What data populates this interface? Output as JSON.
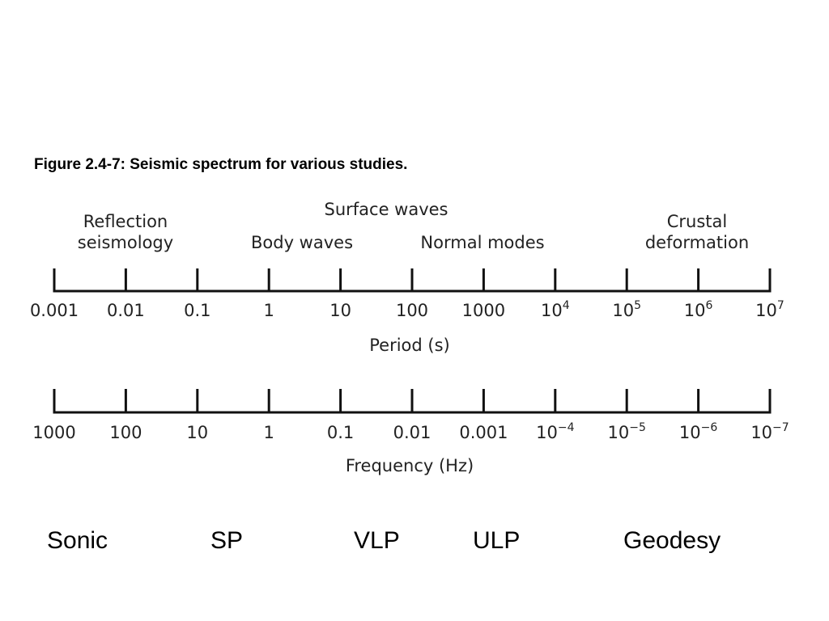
{
  "figure": {
    "title": "Figure 2.4-7: Seismic spectrum for various studies."
  },
  "categories": [
    {
      "lines": [
        "Reflection",
        "seismology"
      ]
    },
    {
      "lines": [
        "Surface waves"
      ]
    },
    {
      "lines": [
        "Body waves"
      ]
    },
    {
      "lines": [
        "Normal modes"
      ]
    },
    {
      "lines": [
        "Crustal",
        "deformation"
      ]
    }
  ],
  "period_axis": {
    "title": "Period (s)",
    "ticks": [
      {
        "base": "0.001"
      },
      {
        "base": "0.01"
      },
      {
        "base": "0.1"
      },
      {
        "base": "1"
      },
      {
        "base": "10"
      },
      {
        "base": "100"
      },
      {
        "base": "1000"
      },
      {
        "base": "10",
        "exp": "4"
      },
      {
        "base": "10",
        "exp": "5"
      },
      {
        "base": "10",
        "exp": "6"
      },
      {
        "base": "10",
        "exp": "7"
      }
    ]
  },
  "frequency_axis": {
    "title": "Frequency (Hz)",
    "ticks": [
      {
        "base": "1000"
      },
      {
        "base": "100"
      },
      {
        "base": "10"
      },
      {
        "base": "1"
      },
      {
        "base": "0.1"
      },
      {
        "base": "0.01"
      },
      {
        "base": "0.001"
      },
      {
        "base": "10",
        "exp": "−4"
      },
      {
        "base": "10",
        "exp": "−5"
      },
      {
        "base": "10",
        "exp": "−6"
      },
      {
        "base": "10",
        "exp": "−7"
      }
    ]
  },
  "bands": [
    "Sonic",
    "SP",
    "VLP",
    "ULP",
    "Geodesy"
  ]
}
